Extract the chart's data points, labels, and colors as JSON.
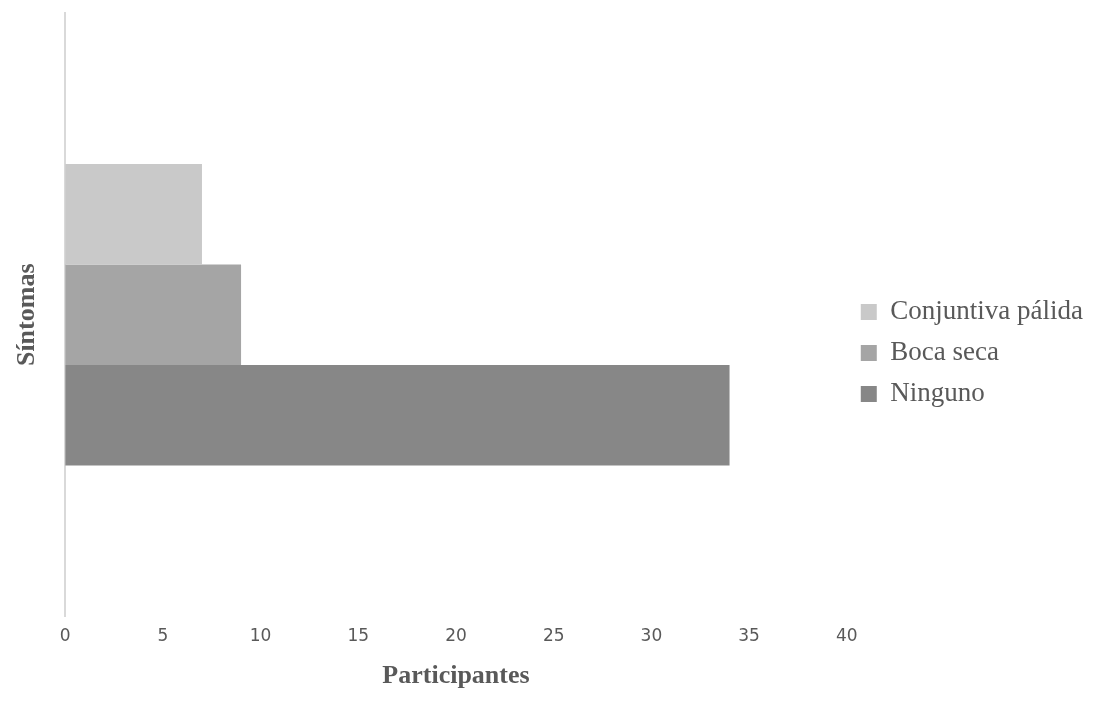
{
  "chart_data": {
    "type": "bar",
    "orientation": "horizontal",
    "categories": [
      null
    ],
    "series": [
      {
        "name": "Conjuntiva pálida",
        "color": "#c9c9c9",
        "values": [
          7
        ]
      },
      {
        "name": "Boca seca",
        "color": "#a5a5a5",
        "values": [
          9
        ]
      },
      {
        "name": "Ninguno",
        "color": "#878787",
        "values": [
          34
        ]
      }
    ],
    "xlabel": "Participantes",
    "ylabel": "Síntomas",
    "xlim": [
      0,
      40
    ],
    "xticks": [
      0,
      5,
      10,
      15,
      20,
      25,
      30,
      35,
      40
    ],
    "legend": "right"
  }
}
